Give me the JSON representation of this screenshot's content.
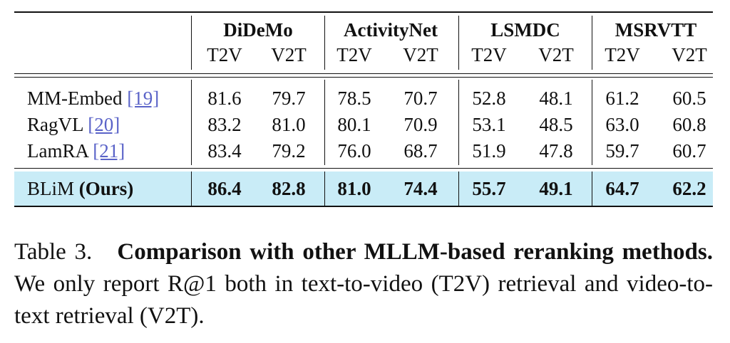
{
  "table": {
    "groups": [
      "DiDeMo",
      "ActivityNet",
      "LSMDC",
      "MSRVTT"
    ],
    "columns": [
      "T2V",
      "V2T",
      "T2V",
      "V2T",
      "T2V",
      "V2T",
      "T2V",
      "V2T"
    ],
    "rows": [
      {
        "method": "MM-Embed",
        "ref": "[19]",
        "values": [
          "81.6",
          "79.7",
          "78.5",
          "70.7",
          "52.8",
          "48.1",
          "61.2",
          "60.5"
        ]
      },
      {
        "method": "RagVL",
        "ref": "[20]",
        "values": [
          "83.2",
          "81.0",
          "80.1",
          "70.9",
          "53.1",
          "48.5",
          "63.0",
          "60.8"
        ]
      },
      {
        "method": "LamRA",
        "ref": "[21]",
        "values": [
          "83.4",
          "79.2",
          "76.0",
          "68.7",
          "51.9",
          "47.8",
          "59.7",
          "60.7"
        ]
      }
    ],
    "ours": {
      "method": "BLiM",
      "note": "(Ours)",
      "values": [
        "86.4",
        "82.8",
        "81.0",
        "74.4",
        "55.7",
        "49.1",
        "64.7",
        "62.2"
      ]
    }
  },
  "caption": {
    "label": "Table 3.",
    "title": "Comparison with other MLLM-based reranking methods.",
    "text": "We only report R@1 both in text-to-video (T2V) retrieval and video-to-text retrieval (V2T)."
  }
}
